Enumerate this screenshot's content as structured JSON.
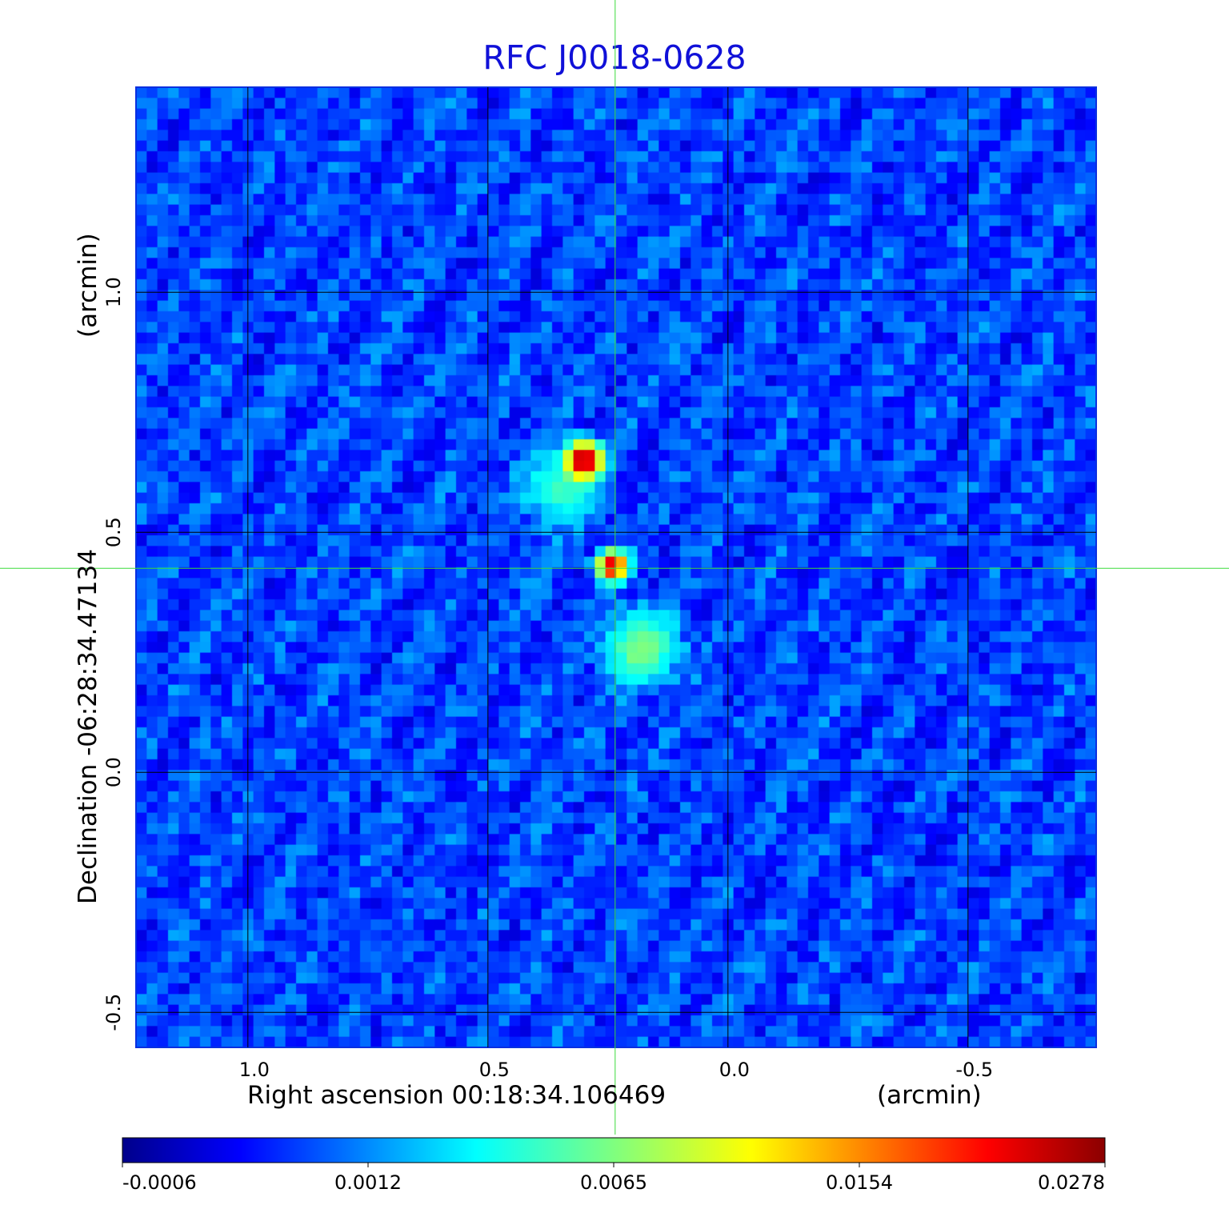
{
  "chart_data": {
    "type": "heatmap",
    "title": "RFC J0018-0628",
    "xlabel": "Right ascension  00:18:34.106469",
    "xunit": "(arcmin)",
    "ylabel": "Declination  -06:28:34.47134",
    "yunit": "(arcmin)",
    "x_ticks": [
      "1.0",
      "0.5",
      "0.0",
      "-0.5"
    ],
    "y_ticks": [
      "1.0",
      "0.5",
      "0.0",
      "-0.5"
    ],
    "x_tick_values": [
      1.0,
      0.5,
      0.0,
      -0.5
    ],
    "y_tick_values": [
      1.0,
      0.5,
      0.0,
      -0.5
    ],
    "xlim": [
      1.233,
      -0.767
    ],
    "ylim": [
      -0.573,
      1.427
    ],
    "grid": true,
    "crosshair": {
      "x": 0.235,
      "y": 0.425
    },
    "components": [
      {
        "name": "",
        "x": 0.3,
        "y": 0.65,
        "peak": 0.0278,
        "sigma": 0.022
      },
      {
        "name": "",
        "x": 0.35,
        "y": 0.59,
        "peak": 0.0035,
        "sigma": 0.045
      },
      {
        "name": "",
        "x": 0.24,
        "y": 0.43,
        "peak": 0.024,
        "sigma": 0.018
      },
      {
        "name": "",
        "x": 0.18,
        "y": 0.26,
        "peak": 0.0055,
        "sigma": 0.045
      }
    ],
    "noise_level": 0.0011,
    "colorbar": {
      "ticks": [
        "-0.0006",
        "0.0012",
        "0.0065",
        "0.0154",
        "0.0278"
      ],
      "colormap": "jet"
    }
  },
  "colors": {
    "title": "#1010d8",
    "crosshair": "#3cdc3c",
    "grid": "#000000",
    "background": "#1a4fff"
  }
}
